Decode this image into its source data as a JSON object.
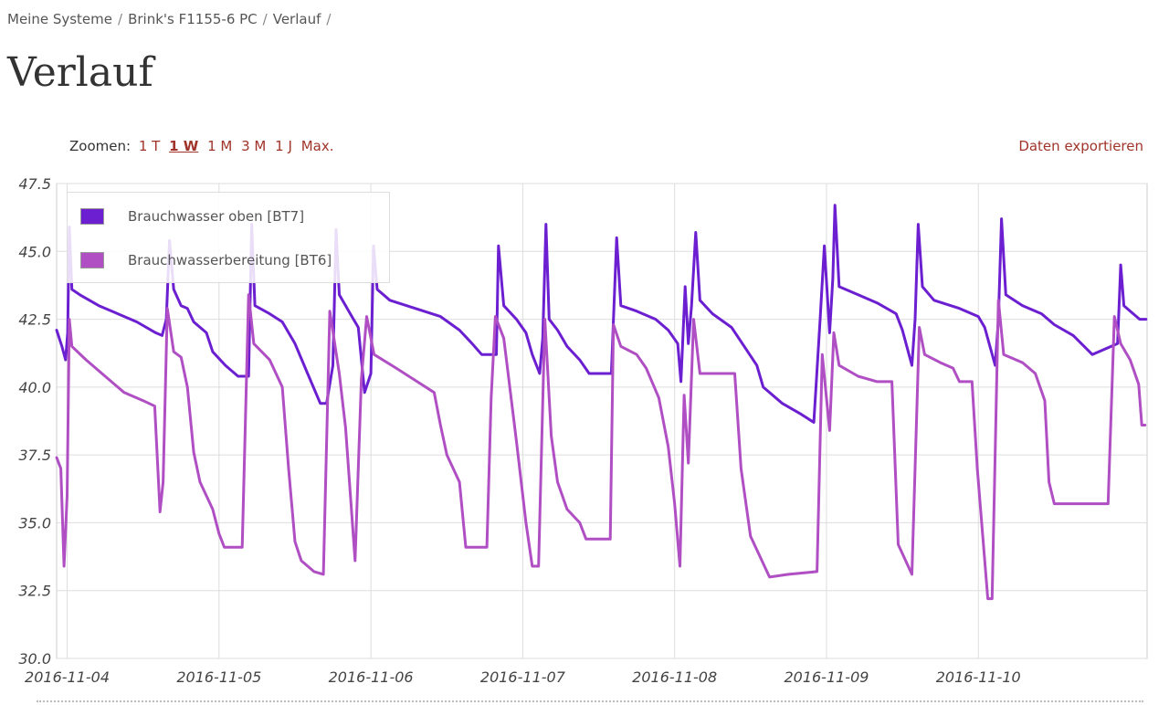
{
  "breadcrumb": {
    "items": [
      "Meine Systeme",
      "Brink's F1155-6 PC",
      "Verlauf"
    ],
    "separator": "/"
  },
  "page_title": "Verlauf",
  "toolbar": {
    "zoom_label": "Zoomen:",
    "zoom_options": [
      "1 T",
      "1 W",
      "1 M",
      "3 M",
      "1 J",
      "Max."
    ],
    "active_zoom": "1 W",
    "export_label": "Daten exportieren"
  },
  "colors": {
    "link": "#a0342a",
    "series_1": "#6b1fd1",
    "series_2": "#b04fc4",
    "grid": "#dddddd"
  },
  "chart_data": {
    "type": "line",
    "title": "",
    "xlabel": "",
    "ylabel": "",
    "ylim": [
      30.0,
      47.5
    ],
    "xlim": [
      "2016-11-03T22:20",
      "2016-11-11T02:40"
    ],
    "y_ticks": [
      "30.0",
      "32.5",
      "35.0",
      "37.5",
      "40.0",
      "42.5",
      "45.0",
      "47.5"
    ],
    "x_ticks": [
      "2016-11-04",
      "2016-11-05",
      "2016-11-06",
      "2016-11-07",
      "2016-11-08",
      "2016-11-09",
      "2016-11-10"
    ],
    "grid": true,
    "legend_position": "top-left",
    "series": [
      {
        "name": "Brauchwasser oben [BT7]",
        "color": "#6b1fd1",
        "points": [
          [
            "2016-11-03T22:20",
            42.1
          ],
          [
            "2016-11-03T23:10",
            41.5
          ],
          [
            "2016-11-03T23:45",
            41.0
          ],
          [
            "2016-11-04T00:05",
            42.0
          ],
          [
            "2016-11-04T00:20",
            45.9
          ],
          [
            "2016-11-04T00:45",
            43.6
          ],
          [
            "2016-11-04T02:00",
            43.4
          ],
          [
            "2016-11-04T05:00",
            43.0
          ],
          [
            "2016-11-04T08:00",
            42.7
          ],
          [
            "2016-11-04T11:00",
            42.4
          ],
          [
            "2016-11-04T14:00",
            42.0
          ],
          [
            "2016-11-04T15:00",
            41.9
          ],
          [
            "2016-11-04T15:40",
            42.5
          ],
          [
            "2016-11-04T16:10",
            45.4
          ],
          [
            "2016-11-04T16:50",
            43.6
          ],
          [
            "2016-11-04T18:00",
            43.0
          ],
          [
            "2016-11-04T19:00",
            42.9
          ],
          [
            "2016-11-04T20:00",
            42.4
          ],
          [
            "2016-11-04T22:00",
            42.0
          ],
          [
            "2016-11-04T23:00",
            41.3
          ],
          [
            "2016-11-05T01:00",
            40.8
          ],
          [
            "2016-11-05T03:00",
            40.4
          ],
          [
            "2016-11-05T04:40",
            40.4
          ],
          [
            "2016-11-05T05:10",
            46.0
          ],
          [
            "2016-11-05T05:40",
            43.0
          ],
          [
            "2016-11-05T08:00",
            42.7
          ],
          [
            "2016-11-05T10:00",
            42.4
          ],
          [
            "2016-11-05T12:00",
            41.6
          ],
          [
            "2016-11-05T14:00",
            40.5
          ],
          [
            "2016-11-05T16:00",
            39.4
          ],
          [
            "2016-11-05T17:00",
            39.4
          ],
          [
            "2016-11-05T18:00",
            40.8
          ],
          [
            "2016-11-05T18:30",
            45.8
          ],
          [
            "2016-11-05T19:00",
            43.4
          ],
          [
            "2016-11-05T21:00",
            42.6
          ],
          [
            "2016-11-05T22:00",
            42.2
          ],
          [
            "2016-11-05T23:00",
            39.8
          ],
          [
            "2016-11-06T00:00",
            40.5
          ],
          [
            "2016-11-06T00:25",
            45.2
          ],
          [
            "2016-11-06T01:00",
            43.6
          ],
          [
            "2016-11-06T03:00",
            43.2
          ],
          [
            "2016-11-06T07:00",
            42.9
          ],
          [
            "2016-11-06T11:00",
            42.6
          ],
          [
            "2016-11-06T14:00",
            42.1
          ],
          [
            "2016-11-06T16:00",
            41.6
          ],
          [
            "2016-11-06T17:30",
            41.2
          ],
          [
            "2016-11-06T19:50",
            41.2
          ],
          [
            "2016-11-06T20:10",
            45.2
          ],
          [
            "2016-11-06T21:00",
            43.0
          ],
          [
            "2016-11-06T23:00",
            42.5
          ],
          [
            "2016-11-07T00:30",
            42.0
          ],
          [
            "2016-11-07T01:30",
            41.2
          ],
          [
            "2016-11-07T02:40",
            40.5
          ],
          [
            "2016-11-07T03:10",
            41.8
          ],
          [
            "2016-11-07T03:40",
            46.0
          ],
          [
            "2016-11-07T04:10",
            42.5
          ],
          [
            "2016-11-07T05:30",
            42.1
          ],
          [
            "2016-11-07T07:00",
            41.5
          ],
          [
            "2016-11-07T09:00",
            41.0
          ],
          [
            "2016-11-07T10:30",
            40.5
          ],
          [
            "2016-11-07T14:00",
            40.5
          ],
          [
            "2016-11-07T14:50",
            45.5
          ],
          [
            "2016-11-07T15:30",
            43.0
          ],
          [
            "2016-11-07T18:00",
            42.8
          ],
          [
            "2016-11-07T21:00",
            42.5
          ],
          [
            "2016-11-07T23:00",
            42.1
          ],
          [
            "2016-11-08T00:30",
            41.6
          ],
          [
            "2016-11-08T01:00",
            40.2
          ],
          [
            "2016-11-08T01:40",
            43.7
          ],
          [
            "2016-11-08T02:10",
            41.6
          ],
          [
            "2016-11-08T02:40",
            43.0
          ],
          [
            "2016-11-08T03:20",
            45.7
          ],
          [
            "2016-11-08T04:00",
            43.2
          ],
          [
            "2016-11-08T06:00",
            42.7
          ],
          [
            "2016-11-08T09:00",
            42.2
          ],
          [
            "2016-11-08T11:00",
            41.5
          ],
          [
            "2016-11-08T13:00",
            40.8
          ],
          [
            "2016-11-08T14:00",
            40.0
          ],
          [
            "2016-11-08T17:00",
            39.4
          ],
          [
            "2016-11-08T20:00",
            39.0
          ],
          [
            "2016-11-08T22:00",
            38.7
          ],
          [
            "2016-11-08T23:00",
            42.5
          ],
          [
            "2016-11-08T23:40",
            45.2
          ],
          [
            "2016-11-09T00:30",
            42.0
          ],
          [
            "2016-11-09T01:00",
            44.0
          ],
          [
            "2016-11-09T01:20",
            46.7
          ],
          [
            "2016-11-09T02:00",
            43.7
          ],
          [
            "2016-11-09T05:00",
            43.4
          ],
          [
            "2016-11-09T08:00",
            43.1
          ],
          [
            "2016-11-09T11:00",
            42.7
          ],
          [
            "2016-11-09T12:00",
            42.1
          ],
          [
            "2016-11-09T13:30",
            40.8
          ],
          [
            "2016-11-09T14:00",
            42.5
          ],
          [
            "2016-11-09T14:30",
            46.0
          ],
          [
            "2016-11-09T15:10",
            43.7
          ],
          [
            "2016-11-09T17:00",
            43.2
          ],
          [
            "2016-11-09T21:00",
            42.9
          ],
          [
            "2016-11-10T00:00",
            42.6
          ],
          [
            "2016-11-10T01:00",
            42.2
          ],
          [
            "2016-11-10T02:40",
            40.8
          ],
          [
            "2016-11-10T03:10",
            42.5
          ],
          [
            "2016-11-10T03:40",
            46.2
          ],
          [
            "2016-11-10T04:20",
            43.4
          ],
          [
            "2016-11-10T07:00",
            43.0
          ],
          [
            "2016-11-10T10:00",
            42.7
          ],
          [
            "2016-11-10T12:00",
            42.3
          ],
          [
            "2016-11-10T15:00",
            41.9
          ],
          [
            "2016-11-10T18:00",
            41.2
          ],
          [
            "2016-11-10T21:00",
            41.5
          ],
          [
            "2016-11-10T22:00",
            41.6
          ],
          [
            "2016-11-10T22:30",
            44.5
          ],
          [
            "2016-11-10T23:00",
            43.0
          ],
          [
            "2016-11-11T00:00",
            42.8
          ],
          [
            "2016-11-11T01:30",
            42.5
          ],
          [
            "2016-11-11T02:30",
            42.5
          ]
        ]
      },
      {
        "name": "Brauchwasserbereitung [BT6]",
        "color": "#b04fc4",
        "points": [
          [
            "2016-11-03T22:20",
            37.4
          ],
          [
            "2016-11-03T23:00",
            37.0
          ],
          [
            "2016-11-03T23:30",
            33.4
          ],
          [
            "2016-11-04T00:00",
            36.0
          ],
          [
            "2016-11-04T00:20",
            42.5
          ],
          [
            "2016-11-04T00:45",
            41.5
          ],
          [
            "2016-11-04T03:00",
            41.0
          ],
          [
            "2016-11-04T06:00",
            40.4
          ],
          [
            "2016-11-04T09:00",
            39.8
          ],
          [
            "2016-11-04T12:00",
            39.5
          ],
          [
            "2016-11-04T13:50",
            39.3
          ],
          [
            "2016-11-04T14:40",
            35.4
          ],
          [
            "2016-11-04T15:10",
            36.5
          ],
          [
            "2016-11-04T15:50",
            42.9
          ],
          [
            "2016-11-04T16:50",
            41.3
          ],
          [
            "2016-11-04T18:00",
            41.1
          ],
          [
            "2016-11-04T19:00",
            40.0
          ],
          [
            "2016-11-04T20:00",
            37.6
          ],
          [
            "2016-11-04T21:00",
            36.5
          ],
          [
            "2016-11-04T23:00",
            35.5
          ],
          [
            "2016-11-05T00:00",
            34.6
          ],
          [
            "2016-11-05T00:50",
            34.1
          ],
          [
            "2016-11-05T03:40",
            34.1
          ],
          [
            "2016-11-05T04:40",
            43.4
          ],
          [
            "2016-11-05T05:30",
            41.6
          ],
          [
            "2016-11-05T08:00",
            41.0
          ],
          [
            "2016-11-05T10:00",
            40.0
          ],
          [
            "2016-11-05T11:00",
            37.0
          ],
          [
            "2016-11-05T12:00",
            34.3
          ],
          [
            "2016-11-05T13:00",
            33.6
          ],
          [
            "2016-11-05T15:00",
            33.2
          ],
          [
            "2016-11-05T16:30",
            33.1
          ],
          [
            "2016-11-05T17:30",
            42.8
          ],
          [
            "2016-11-05T19:00",
            40.5
          ],
          [
            "2016-11-05T20:00",
            38.5
          ],
          [
            "2016-11-05T21:30",
            33.6
          ],
          [
            "2016-11-05T22:30",
            40.3
          ],
          [
            "2016-11-05T23:20",
            42.6
          ],
          [
            "2016-11-06T00:30",
            41.2
          ],
          [
            "2016-11-06T04:00",
            40.7
          ],
          [
            "2016-11-06T08:00",
            40.1
          ],
          [
            "2016-11-06T10:00",
            39.8
          ],
          [
            "2016-11-06T11:00",
            38.6
          ],
          [
            "2016-11-06T12:00",
            37.5
          ],
          [
            "2016-11-06T14:00",
            36.5
          ],
          [
            "2016-11-06T15:00",
            34.1
          ],
          [
            "2016-11-06T18:20",
            34.1
          ],
          [
            "2016-11-06T19:00",
            39.6
          ],
          [
            "2016-11-06T19:40",
            42.6
          ],
          [
            "2016-11-06T21:00",
            41.8
          ],
          [
            "2016-11-06T23:00",
            38.0
          ],
          [
            "2016-11-07T00:30",
            35.0
          ],
          [
            "2016-11-07T01:30",
            33.4
          ],
          [
            "2016-11-07T02:30",
            33.4
          ],
          [
            "2016-11-07T03:30",
            42.5
          ],
          [
            "2016-11-07T04:30",
            38.2
          ],
          [
            "2016-11-07T05:30",
            36.5
          ],
          [
            "2016-11-07T07:00",
            35.5
          ],
          [
            "2016-11-07T09:00",
            35.0
          ],
          [
            "2016-11-07T10:00",
            34.4
          ],
          [
            "2016-11-07T13:50",
            34.4
          ],
          [
            "2016-11-07T14:20",
            42.3
          ],
          [
            "2016-11-07T15:30",
            41.5
          ],
          [
            "2016-11-07T18:00",
            41.2
          ],
          [
            "2016-11-07T19:30",
            40.7
          ],
          [
            "2016-11-07T21:30",
            39.6
          ],
          [
            "2016-11-07T23:00",
            37.8
          ],
          [
            "2016-11-08T00:00",
            35.7
          ],
          [
            "2016-11-08T00:50",
            33.4
          ],
          [
            "2016-11-08T01:30",
            39.7
          ],
          [
            "2016-11-08T02:10",
            37.2
          ],
          [
            "2016-11-08T03:00",
            42.5
          ],
          [
            "2016-11-08T04:00",
            40.5
          ],
          [
            "2016-11-08T09:30",
            40.5
          ],
          [
            "2016-11-08T10:30",
            37.0
          ],
          [
            "2016-11-08T12:00",
            34.5
          ],
          [
            "2016-11-08T15:00",
            33.0
          ],
          [
            "2016-11-08T18:00",
            33.1
          ],
          [
            "2016-11-08T22:30",
            33.2
          ],
          [
            "2016-11-08T23:20",
            41.2
          ],
          [
            "2016-11-09T00:30",
            38.4
          ],
          [
            "2016-11-09T01:10",
            42.0
          ],
          [
            "2016-11-09T02:00",
            40.8
          ],
          [
            "2016-11-09T05:00",
            40.4
          ],
          [
            "2016-11-09T08:00",
            40.2
          ],
          [
            "2016-11-09T10:20",
            40.2
          ],
          [
            "2016-11-09T11:20",
            34.2
          ],
          [
            "2016-11-09T13:30",
            33.1
          ],
          [
            "2016-11-09T14:40",
            42.2
          ],
          [
            "2016-11-09T15:30",
            41.2
          ],
          [
            "2016-11-09T18:00",
            40.9
          ],
          [
            "2016-11-09T20:00",
            40.7
          ],
          [
            "2016-11-09T21:00",
            40.2
          ],
          [
            "2016-11-09T23:00",
            40.2
          ],
          [
            "2016-11-09T23:50",
            37.0
          ],
          [
            "2016-11-10T01:30",
            32.2
          ],
          [
            "2016-11-10T02:10",
            32.2
          ],
          [
            "2016-11-10T03:10",
            43.2
          ],
          [
            "2016-11-10T04:00",
            41.2
          ],
          [
            "2016-11-10T07:00",
            40.9
          ],
          [
            "2016-11-10T09:00",
            40.5
          ],
          [
            "2016-11-10T10:30",
            39.5
          ],
          [
            "2016-11-10T11:10",
            36.5
          ],
          [
            "2016-11-10T12:00",
            35.7
          ],
          [
            "2016-11-10T20:30",
            35.7
          ],
          [
            "2016-11-10T21:30",
            42.6
          ],
          [
            "2016-11-10T22:30",
            41.6
          ],
          [
            "2016-11-11T00:00",
            41.0
          ],
          [
            "2016-11-11T01:20",
            40.1
          ],
          [
            "2016-11-11T01:50",
            38.6
          ],
          [
            "2016-11-11T02:20",
            38.6
          ]
        ]
      }
    ]
  }
}
